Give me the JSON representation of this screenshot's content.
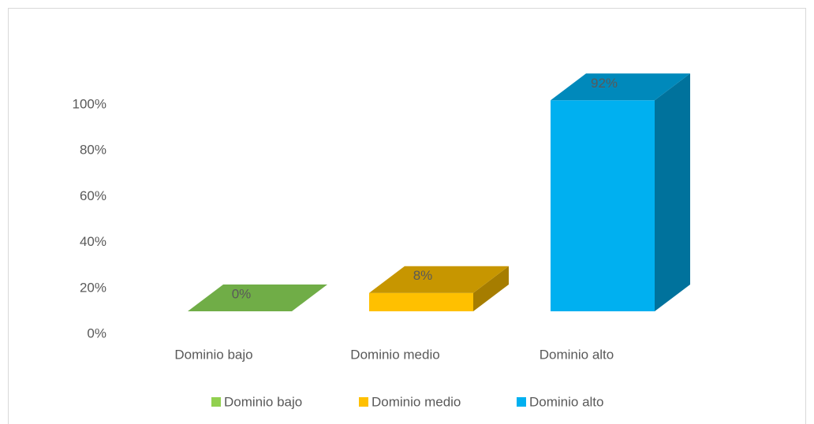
{
  "chart_data": {
    "type": "bar3d",
    "categories": [
      "Dominio bajo",
      "Dominio medio",
      "Dominio alto"
    ],
    "values": [
      0,
      8,
      92
    ],
    "value_labels": [
      "0%",
      "8%",
      "92%"
    ],
    "colors": [
      "#70ad47",
      "#ffc000",
      "#00b0f0"
    ],
    "legend_colors": [
      "#92d050",
      "#ffc000",
      "#00b0f0"
    ],
    "ylim": [
      0,
      100
    ],
    "yticks": [
      {
        "value": 0,
        "label": "0%"
      },
      {
        "value": 20,
        "label": "20%"
      },
      {
        "value": 40,
        "label": "40%"
      },
      {
        "value": 60,
        "label": "60%"
      },
      {
        "value": 80,
        "label": "80%"
      },
      {
        "value": 100,
        "label": "100%"
      }
    ],
    "legend": "bottom"
  }
}
